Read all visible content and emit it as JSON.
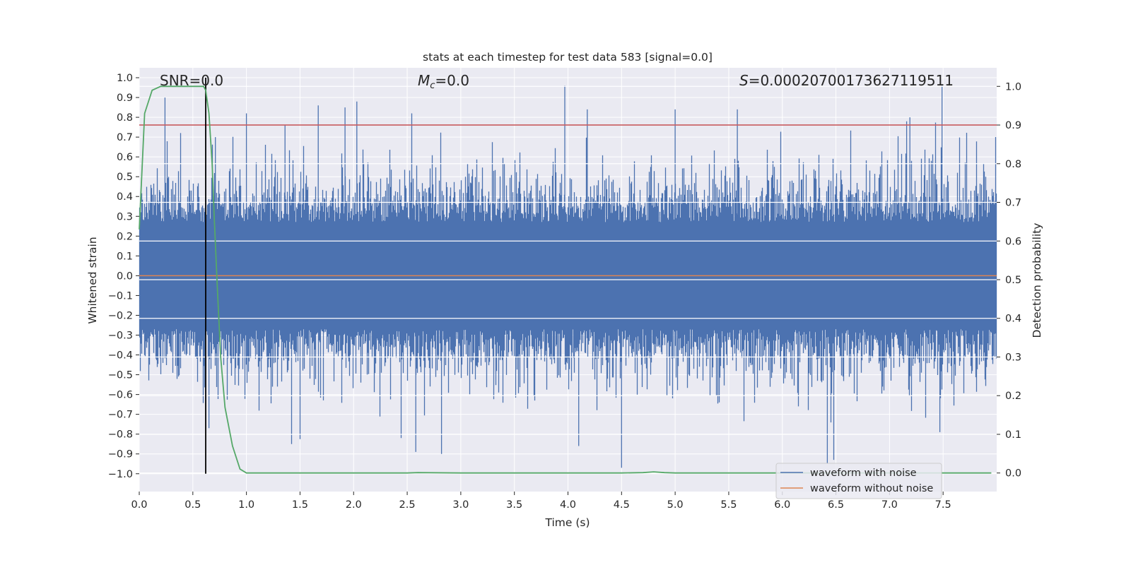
{
  "chart_data": {
    "type": "line",
    "title": "stats at each timestep for test data 583 [signal=0.0]",
    "xlabel": "Time (s)",
    "ylabel_left": "Whitened strain",
    "ylabel_right": "Detection probability",
    "xlim": [
      0.0,
      8.0
    ],
    "ylim_left": [
      -1.09,
      1.05
    ],
    "ylim_right": [
      -0.048,
      1.048
    ],
    "grid": true,
    "legend_placement": "lower-right",
    "x_ticks": [
      "0.0",
      "0.5",
      "1.0",
      "1.5",
      "2.0",
      "2.5",
      "3.0",
      "3.5",
      "4.0",
      "4.5",
      "5.0",
      "5.5",
      "6.0",
      "6.5",
      "7.0",
      "7.5"
    ],
    "y_ticks_left": [
      "1.0",
      "0.9",
      "0.8",
      "0.7",
      "0.6",
      "0.5",
      "0.4",
      "0.3",
      "0.2",
      "0.1",
      "0.0",
      "−0.1",
      "−0.2",
      "−0.3",
      "−0.4",
      "−0.5",
      "−0.6",
      "−0.7",
      "−0.8",
      "−0.9",
      "−1.0"
    ],
    "y_ticks_right": [
      "1.0",
      "0.9",
      "0.8",
      "0.7",
      "0.6",
      "0.5",
      "0.4",
      "0.3",
      "0.2",
      "0.1",
      "0.0"
    ],
    "annotations": {
      "snr": "SNR=0.0",
      "mc_symbol": "M",
      "mc_sub": "c",
      "mc_value": "=0.0",
      "s_symbol": "S",
      "s_value": "=0.000207001736271195​11"
    },
    "series": [
      {
        "name": "waveform with noise",
        "axis": "left",
        "color": "#4c72b0",
        "kind": "noise-envelope",
        "sample_spikes": [
          {
            "x": 0.24,
            "y": 0.9
          },
          {
            "x": 0.62,
            "y": 0.77
          },
          {
            "x": 0.71,
            "y": 0.7
          },
          {
            "x": 1.0,
            "y": 0.82
          },
          {
            "x": 1.36,
            "y": 0.76
          },
          {
            "x": 1.67,
            "y": 0.86
          },
          {
            "x": 1.92,
            "y": 0.85
          },
          {
            "x": 2.03,
            "y": 0.88
          },
          {
            "x": 3.97,
            "y": 0.96
          },
          {
            "x": 4.18,
            "y": 0.84
          },
          {
            "x": 5.0,
            "y": 0.84
          },
          {
            "x": 5.58,
            "y": 0.84
          },
          {
            "x": 7.19,
            "y": 0.8
          },
          {
            "x": 7.49,
            "y": 0.96
          },
          {
            "x": 7.16,
            "y": 0.78
          },
          {
            "x": 0.65,
            "y": -0.77
          },
          {
            "x": 2.58,
            "y": -0.89
          },
          {
            "x": 2.82,
            "y": -0.9
          },
          {
            "x": 4.5,
            "y": -0.97
          },
          {
            "x": 6.42,
            "y": -0.95
          },
          {
            "x": 6.48,
            "y": -0.93
          },
          {
            "x": 7.47,
            "y": -0.79
          },
          {
            "x": 4.1,
            "y": -0.86
          }
        ]
      },
      {
        "name": "waveform without noise",
        "axis": "left",
        "color": "#dd8452",
        "x": [
          0.0,
          8.0
        ],
        "y": [
          0.0,
          0.0
        ]
      },
      {
        "name": "detection probability",
        "axis": "right",
        "color": "#55a868",
        "x": [
          0.0,
          0.05,
          0.12,
          0.2,
          0.3,
          0.4,
          0.5,
          0.55,
          0.6,
          0.62,
          0.65,
          0.68,
          0.7,
          0.73,
          0.76,
          0.8,
          0.87,
          0.94,
          1.0,
          1.5,
          2.0,
          2.5,
          2.6,
          3.0,
          3.5,
          4.0,
          4.5,
          4.7,
          4.8,
          4.9,
          5.0,
          5.5,
          6.0,
          6.5,
          7.0,
          7.5,
          7.95
        ],
        "y": [
          0.63,
          0.93,
          0.99,
          1.0,
          1.0,
          1.0,
          1.0,
          1.0,
          1.0,
          0.99,
          0.93,
          0.8,
          0.66,
          0.47,
          0.3,
          0.17,
          0.07,
          0.01,
          0.0,
          0.0,
          0.0,
          0.0,
          0.001,
          0.0,
          0.0,
          0.0,
          0.0,
          0.001,
          0.003,
          0.001,
          0.0,
          0.0,
          0.0,
          0.0,
          0.0,
          0.0,
          0.0
        ]
      }
    ],
    "hlines": [
      {
        "axis": "right",
        "y": 0.9,
        "color": "#c44e52"
      }
    ],
    "vlines": [
      {
        "axis": "left",
        "x": 0.62,
        "y0": -1.0,
        "y1": 1.0,
        "color": "#000000"
      }
    ],
    "legend": [
      "waveform with noise",
      "waveform without noise"
    ]
  }
}
